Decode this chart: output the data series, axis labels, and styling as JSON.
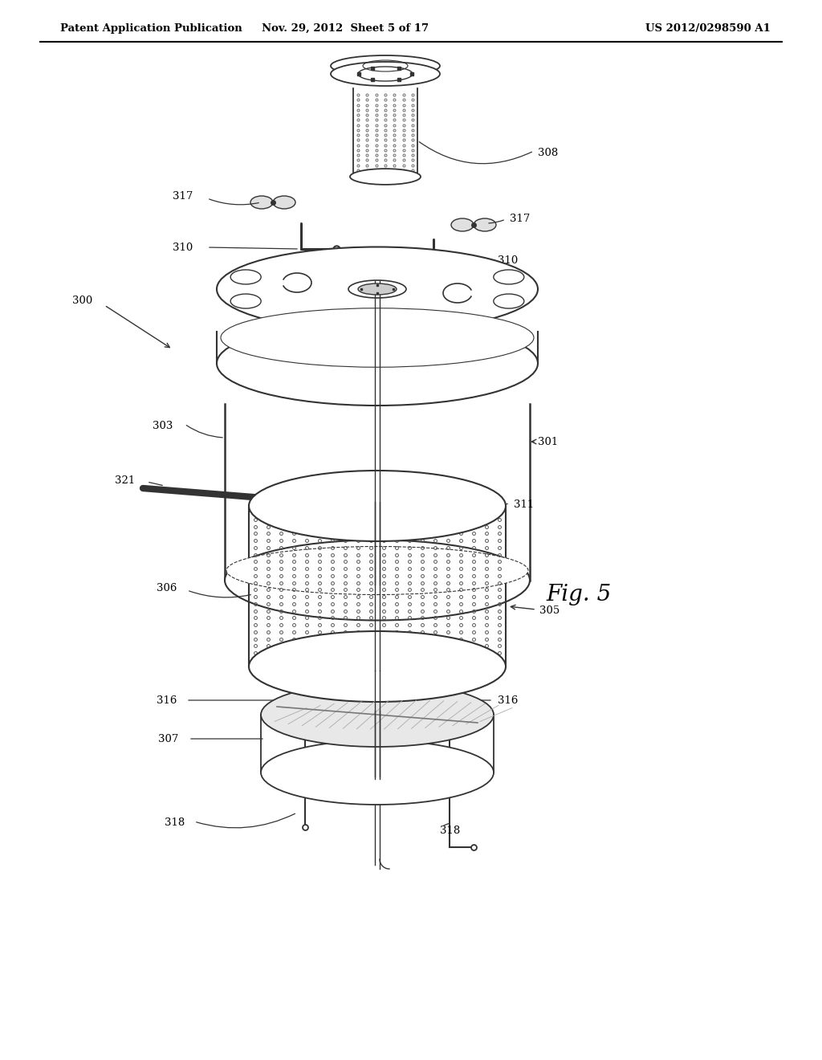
{
  "bg_color": "#ffffff",
  "title_left": "Patent Application Publication",
  "title_mid": "Nov. 29, 2012  Sheet 5 of 17",
  "title_right": "US 2012/0298590 A1",
  "fig_label": "Fig. 5",
  "line_color": "#333333",
  "dot_color": "#555555"
}
